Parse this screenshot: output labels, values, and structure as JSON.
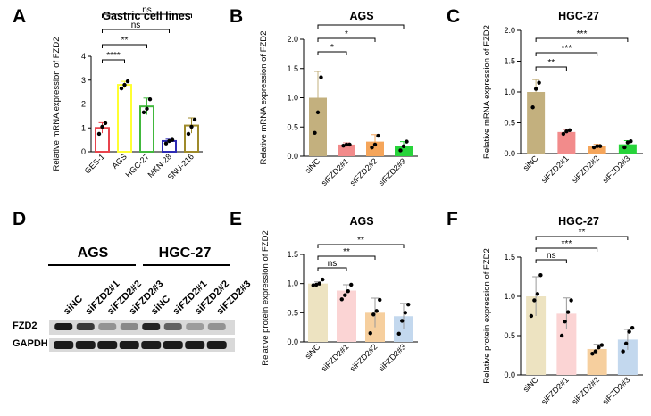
{
  "panel_labels": [
    "A",
    "B",
    "C",
    "D",
    "E",
    "F"
  ],
  "colors": {
    "A": [
      "#e8434c",
      "#ffff33",
      "#41b83c",
      "#2d2ab3",
      "#9e8a2a"
    ],
    "BC_fill": [
      "#c3b07e",
      "#f28b8b",
      "#f5a55a",
      "#27d43a"
    ],
    "EF_fill": [
      "#ede3c1",
      "#fbd4d4",
      "#f6cf9e",
      "#c3d8ee"
    ]
  },
  "chart_data": [
    {
      "panel": "A",
      "type": "bar",
      "title": "Gastric cell lines",
      "ylabel": "Relative mRNA expression of FZD2",
      "categories": [
        "GES-1",
        "AGS",
        "HGC-27",
        "MKN-28",
        "SNU-216"
      ],
      "values": [
        1.0,
        2.8,
        1.9,
        0.45,
        1.1
      ],
      "errors": [
        0.22,
        0.15,
        0.35,
        0.08,
        0.32
      ],
      "points": [
        [
          0.75,
          1.05,
          1.2
        ],
        [
          2.65,
          2.8,
          2.95
        ],
        [
          1.65,
          1.8,
          2.2
        ],
        [
          0.35,
          0.45,
          0.5
        ],
        [
          0.75,
          1.05,
          1.35
        ]
      ],
      "ylim": [
        0,
        4
      ],
      "yticks": [
        "0",
        "1",
        "2",
        "3",
        "4"
      ],
      "bar_style": "outline",
      "sig": [
        {
          "from": 0,
          "to": 1,
          "label": "****"
        },
        {
          "from": 0,
          "to": 2,
          "label": "**"
        },
        {
          "from": 0,
          "to": 3,
          "label": "ns"
        },
        {
          "from": 0,
          "to": 4,
          "label": "ns"
        }
      ]
    },
    {
      "panel": "B",
      "type": "bar",
      "title": "AGS",
      "ylabel": "Relative mRNA expression of FZD2",
      "categories": [
        "siNC",
        "siFZD2#1",
        "siFZD2#2",
        "siFZD2#3"
      ],
      "values": [
        1.0,
        0.2,
        0.25,
        0.17
      ],
      "errors": [
        0.45,
        0.03,
        0.12,
        0.08
      ],
      "points": [
        [
          0.4,
          0.75,
          1.35
        ],
        [
          0.18,
          0.2,
          0.2
        ],
        [
          0.15,
          0.2,
          0.35
        ],
        [
          0.1,
          0.17,
          0.25
        ]
      ],
      "ylim": [
        0,
        2.0
      ],
      "yticks": [
        "0.0",
        "0.5",
        "1.0",
        "1.5",
        "2.0"
      ],
      "bar_style": "filled",
      "sig": [
        {
          "from": 0,
          "to": 1,
          "label": "*"
        },
        {
          "from": 0,
          "to": 2,
          "label": "*"
        },
        {
          "from": 0,
          "to": 3,
          "label": "*"
        }
      ]
    },
    {
      "panel": "C",
      "type": "bar",
      "title": "HGC-27",
      "ylabel": "Relative mRNA expression of FZD2",
      "categories": [
        "siNC",
        "siFZD2#1",
        "siFZD2#2",
        "siFZD2#3"
      ],
      "values": [
        1.0,
        0.35,
        0.12,
        0.15
      ],
      "errors": [
        0.2,
        0.04,
        0.03,
        0.06
      ],
      "points": [
        [
          0.75,
          1.05,
          1.15
        ],
        [
          0.32,
          0.36,
          0.38
        ],
        [
          0.1,
          0.12,
          0.12
        ],
        [
          0.1,
          0.18,
          0.2
        ]
      ],
      "ylim": [
        0,
        2.0
      ],
      "yticks": [
        "0.0",
        "0.5",
        "1.0",
        "1.5",
        "2.0"
      ],
      "bar_style": "filled",
      "sig": [
        {
          "from": 0,
          "to": 1,
          "label": "**"
        },
        {
          "from": 0,
          "to": 2,
          "label": "***"
        },
        {
          "from": 0,
          "to": 3,
          "label": "***"
        }
      ]
    },
    {
      "panel": "E",
      "type": "bar",
      "title": "AGS",
      "ylabel": "Relative protein expression of FZD2",
      "categories": [
        "siNC",
        "siFZD2#1",
        "siFZD2#2",
        "siFZD2#3"
      ],
      "values": [
        1.0,
        0.88,
        0.5,
        0.44
      ],
      "errors": [
        0.03,
        0.1,
        0.25,
        0.22
      ],
      "points": [
        [
          0.97,
          0.98,
          1.0,
          1.07
        ],
        [
          0.73,
          0.8,
          0.87,
          0.98
        ],
        [
          0.15,
          0.47,
          0.53,
          0.72
        ],
        [
          0.14,
          0.36,
          0.5,
          0.64
        ]
      ],
      "ylim": [
        0,
        1.5
      ],
      "yticks": [
        "0.0",
        "0.5",
        "1.0",
        "1.5"
      ],
      "bar_style": "light",
      "sig": [
        {
          "from": 0,
          "to": 1,
          "label": "ns"
        },
        {
          "from": 0,
          "to": 2,
          "label": "**"
        },
        {
          "from": 0,
          "to": 3,
          "label": "**"
        }
      ]
    },
    {
      "panel": "F",
      "type": "bar",
      "title": "HGC-27",
      "ylabel": "Relative protein expression of FZD2",
      "categories": [
        "siNC",
        "siFZD2#1",
        "siFZD2#2",
        "siFZD2#3"
      ],
      "values": [
        1.0,
        0.78,
        0.33,
        0.45
      ],
      "errors": [
        0.25,
        0.2,
        0.06,
        0.13
      ],
      "points": [
        [
          0.75,
          0.95,
          1.03,
          1.27
        ],
        [
          0.5,
          0.68,
          0.8,
          0.95
        ],
        [
          0.27,
          0.3,
          0.35,
          0.38
        ],
        [
          0.3,
          0.4,
          0.55,
          0.6
        ]
      ],
      "ylim": [
        0,
        1.5
      ],
      "yticks": [
        "0.0",
        "0.5",
        "1.0",
        "1.5"
      ],
      "bar_style": "light",
      "sig": [
        {
          "from": 0,
          "to": 1,
          "label": "ns"
        },
        {
          "from": 0,
          "to": 2,
          "label": "***"
        },
        {
          "from": 0,
          "to": 3,
          "label": "**"
        }
      ]
    }
  ],
  "western_blot": {
    "groups": [
      "AGS",
      "HGC-27"
    ],
    "lanes": [
      "siNC",
      "siFZD2#1",
      "siFZD2#2",
      "siFZD2#3",
      "siNC",
      "siFZD2#1",
      "siFZD2#2",
      "siFZD2#3"
    ],
    "rows": [
      "FZD2",
      "GAPDH"
    ],
    "fzd2_intensity": [
      0.95,
      0.8,
      0.35,
      0.4,
      0.9,
      0.6,
      0.3,
      0.35
    ],
    "gapdh_intensity": [
      0.95,
      0.95,
      0.95,
      0.95,
      0.95,
      0.95,
      0.95,
      0.95
    ]
  }
}
